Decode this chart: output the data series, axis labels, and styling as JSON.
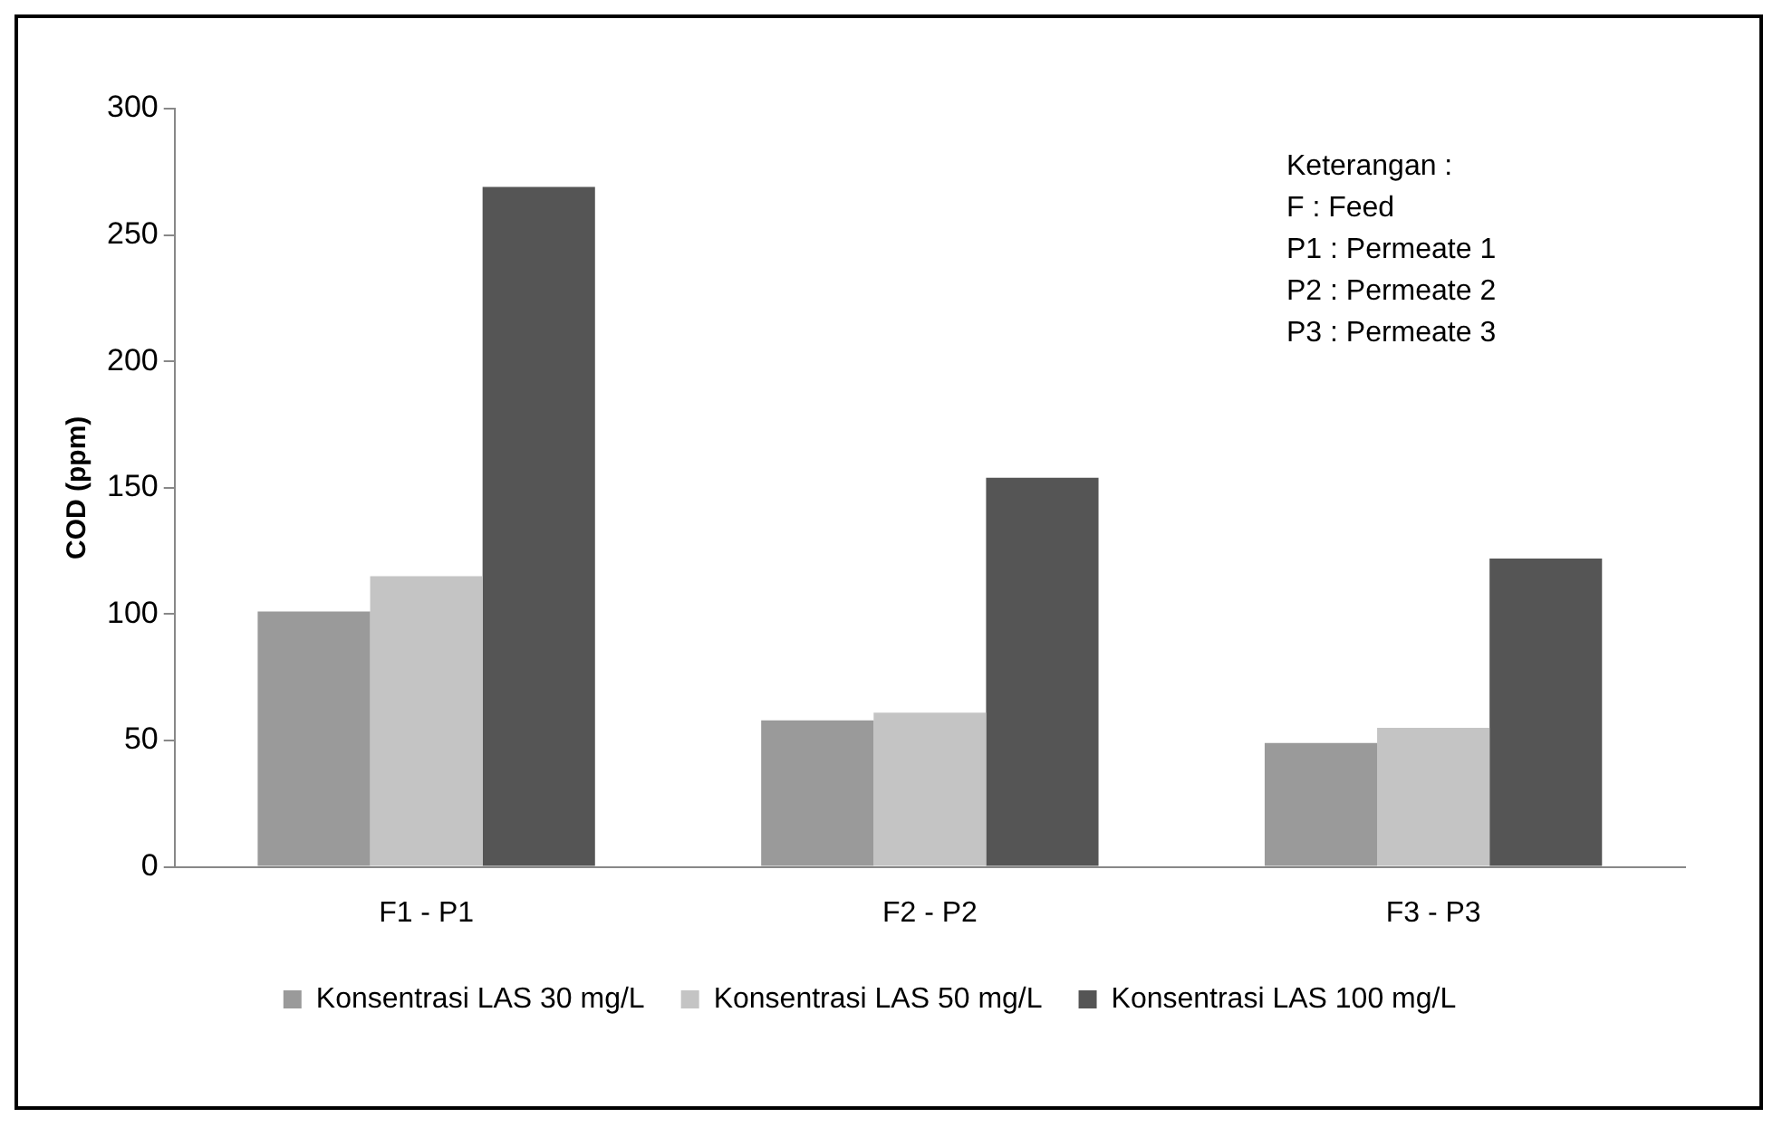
{
  "chart_data": {
    "type": "bar",
    "ylabel": "COD (ppm)",
    "categories": [
      "F1 - P1",
      "F2 - P2",
      "F3 - P3"
    ],
    "series": [
      {
        "name": "Konsentrasi LAS 30 mg/L",
        "color": "#9a9a9a",
        "values": [
          101,
          58,
          49
        ]
      },
      {
        "name": "Konsentrasi LAS 50 mg/L",
        "color": "#c4c4c4",
        "values": [
          115,
          61,
          55
        ]
      },
      {
        "name": "Konsentrasi LAS 100 mg/L",
        "color": "#555555",
        "values": [
          269,
          154,
          122
        ]
      }
    ],
    "ylim": [
      0,
      300
    ],
    "yticks": [
      0,
      50,
      100,
      150,
      200,
      250,
      300
    ],
    "grid": false,
    "legend": "bottom",
    "annotations": [
      "Keterangan :",
      "F : Feed",
      "P1 : Permeate 1",
      "P2 : Permeate 2",
      "P3 : Permeate 3"
    ]
  }
}
